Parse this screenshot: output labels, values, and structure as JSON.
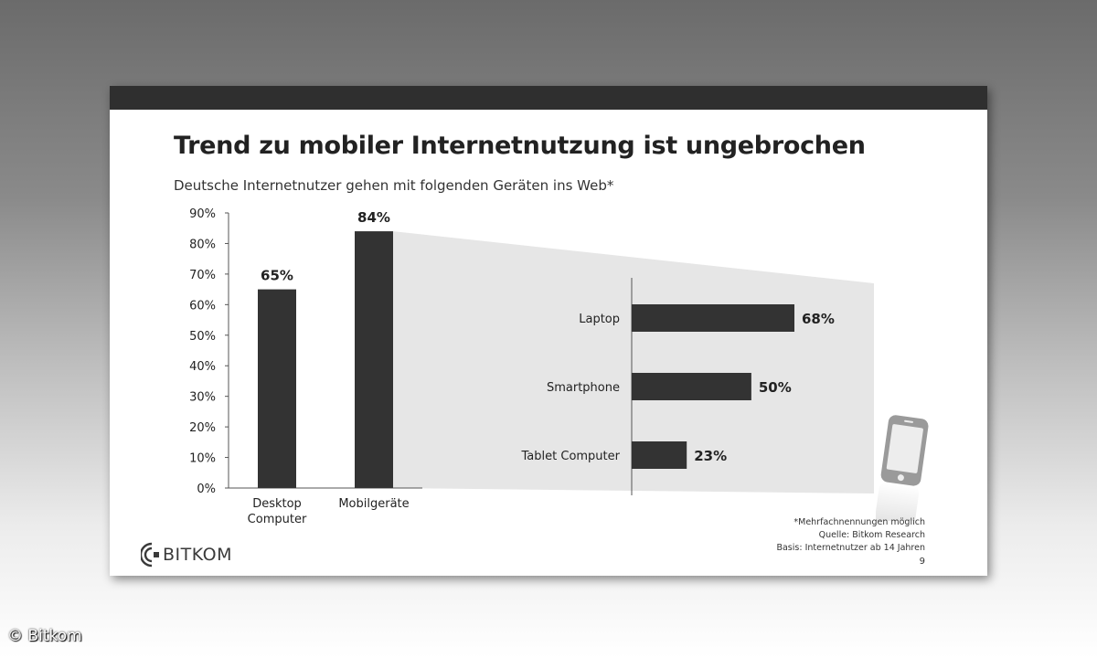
{
  "slide": {
    "title": "Trend zu mobiler Internetnutzung ist ungebrochen",
    "subtitle": "Deutsche Internetnutzer gehen mit folgenden Geräten ins Web*",
    "footnotes": [
      "*Mehrfachnennungen möglich",
      "Quelle: Bitkom Research",
      "Basis: Internetnutzer ab 14 Jahren"
    ],
    "page_number": "9",
    "logo_text": "BITKOM"
  },
  "copyright": "© Bitkom",
  "icons": {
    "logo": "bitkom-logo-mark",
    "device": "smartphone-icon"
  },
  "colors": {
    "bar": "#333333",
    "breakdown_panel": "#e6e6e6",
    "header_bar": "#2f2f2f"
  },
  "chart_data": [
    {
      "type": "bar",
      "orientation": "vertical",
      "categories": [
        [
          "Desktop",
          "Computer"
        ],
        [
          "Mobilgeräte"
        ]
      ],
      "values": [
        65,
        84
      ],
      "value_labels": [
        "65%",
        "84%"
      ],
      "y_ticks": [
        "0%",
        "10%",
        "20%",
        "30%",
        "40%",
        "50%",
        "60%",
        "70%",
        "80%",
        "90%"
      ],
      "ylim": [
        0,
        90
      ],
      "grid": false
    },
    {
      "type": "bar",
      "orientation": "horizontal",
      "categories": [
        "Laptop",
        "Smartphone",
        "Tablet Computer"
      ],
      "values": [
        68,
        50,
        23
      ],
      "value_labels": [
        "68%",
        "50%",
        "23%"
      ],
      "grid": false
    }
  ]
}
